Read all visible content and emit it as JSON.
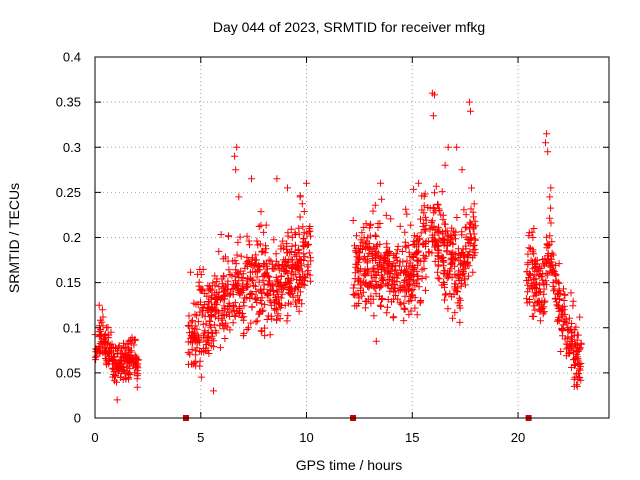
{
  "chart_data": {
    "type": "scatter",
    "title": "Day 044 of 2023, SRMTID for receiver mfkg",
    "xlabel": "GPS time / hours",
    "ylabel": "SRMTID / TECUs",
    "xlim": [
      0,
      24.3
    ],
    "ylim": [
      0,
      0.4
    ],
    "xticks": [
      0,
      5,
      10,
      15,
      20
    ],
    "xtick_labels": [
      "0",
      "5",
      "10",
      "15",
      "20"
    ],
    "yticks": [
      0,
      0.05,
      0.1,
      0.15,
      0.2,
      0.25,
      0.3,
      0.35,
      0.4
    ],
    "ytick_labels": [
      "0",
      "0.05",
      "0.1",
      "0.15",
      "0.2",
      "0.25",
      "0.3",
      "0.35",
      "0.4"
    ],
    "grid": true,
    "marker": "+",
    "color": "#ff0000",
    "gap_marker_color": "#cc0000",
    "gap_markers_x": [
      4.3,
      12.2,
      20.5
    ],
    "series": [
      {
        "name": "SRMTID",
        "segments": [
          {
            "x_range": [
              0.0,
              2.05
            ],
            "profile": [
              [
                0.0,
                0.075
              ],
              [
                0.3,
                0.09
              ],
              [
                0.5,
                0.08
              ],
              [
                0.8,
                0.07
              ],
              [
                1.1,
                0.058
              ],
              [
                1.5,
                0.06
              ],
              [
                1.8,
                0.065
              ],
              [
                2.05,
                0.055
              ]
            ],
            "spread": 0.022,
            "count": 220,
            "highlights": [
              [
                0.2,
                0.125
              ],
              [
                0.35,
                0.12
              ],
              [
                1.05,
                0.02
              ],
              [
                1.6,
                0.085
              ]
            ]
          },
          {
            "x_range": [
              4.4,
              10.2
            ],
            "profile": [
              [
                4.4,
                0.09
              ],
              [
                5.0,
                0.1
              ],
              [
                5.5,
                0.11
              ],
              [
                6.0,
                0.13
              ],
              [
                6.6,
                0.15
              ],
              [
                7.0,
                0.13
              ],
              [
                7.5,
                0.15
              ],
              [
                8.0,
                0.15
              ],
              [
                8.5,
                0.14
              ],
              [
                9.0,
                0.16
              ],
              [
                9.5,
                0.16
              ],
              [
                10.0,
                0.19
              ],
              [
                10.2,
                0.17
              ]
            ],
            "spread": 0.045,
            "count": 640,
            "highlights": [
              [
                6.6,
                0.29
              ],
              [
                6.7,
                0.3
              ],
              [
                6.65,
                0.275
              ],
              [
                7.4,
                0.265
              ],
              [
                8.6,
                0.265
              ],
              [
                9.1,
                0.255
              ],
              [
                10.0,
                0.26
              ],
              [
                5.6,
                0.03
              ],
              [
                6.8,
                0.245
              ],
              [
                9.7,
                0.245
              ]
            ]
          },
          {
            "x_range": [
              12.2,
              18.0
            ],
            "profile": [
              [
                12.2,
                0.155
              ],
              [
                12.8,
                0.17
              ],
              [
                13.3,
                0.17
              ],
              [
                13.6,
                0.16
              ],
              [
                14.0,
                0.155
              ],
              [
                14.5,
                0.15
              ],
              [
                15.0,
                0.16
              ],
              [
                15.5,
                0.19
              ],
              [
                16.0,
                0.21
              ],
              [
                16.4,
                0.18
              ],
              [
                16.8,
                0.17
              ],
              [
                17.2,
                0.155
              ],
              [
                17.6,
                0.19
              ],
              [
                18.0,
                0.2
              ]
            ],
            "spread": 0.045,
            "count": 640,
            "highlights": [
              [
                15.95,
                0.36
              ],
              [
                16.05,
                0.358
              ],
              [
                16.0,
                0.335
              ],
              [
                17.7,
                0.35
              ],
              [
                17.75,
                0.34
              ],
              [
                16.7,
                0.3
              ],
              [
                17.1,
                0.3
              ],
              [
                16.55,
                0.28
              ],
              [
                13.5,
                0.26
              ],
              [
                15.3,
                0.26
              ],
              [
                17.35,
                0.275
              ],
              [
                13.3,
                0.085
              ]
            ]
          },
          {
            "x_range": [
              20.4,
              23.0
            ],
            "profile": [
              [
                20.4,
                0.16
              ],
              [
                20.8,
                0.15
              ],
              [
                21.2,
                0.14
              ],
              [
                21.5,
                0.2
              ],
              [
                21.7,
                0.15
              ],
              [
                22.0,
                0.12
              ],
              [
                22.3,
                0.095
              ],
              [
                22.6,
                0.075
              ],
              [
                23.0,
                0.055
              ]
            ],
            "spread": 0.035,
            "count": 280,
            "highlights": [
              [
                21.35,
                0.315
              ],
              [
                21.3,
                0.305
              ],
              [
                21.4,
                0.295
              ],
              [
                21.55,
                0.255
              ],
              [
                21.5,
                0.245
              ],
              [
                20.75,
                0.21
              ],
              [
                20.7,
                0.2
              ],
              [
                22.8,
                0.035
              ],
              [
                22.9,
                0.045
              ]
            ]
          }
        ]
      }
    ]
  }
}
